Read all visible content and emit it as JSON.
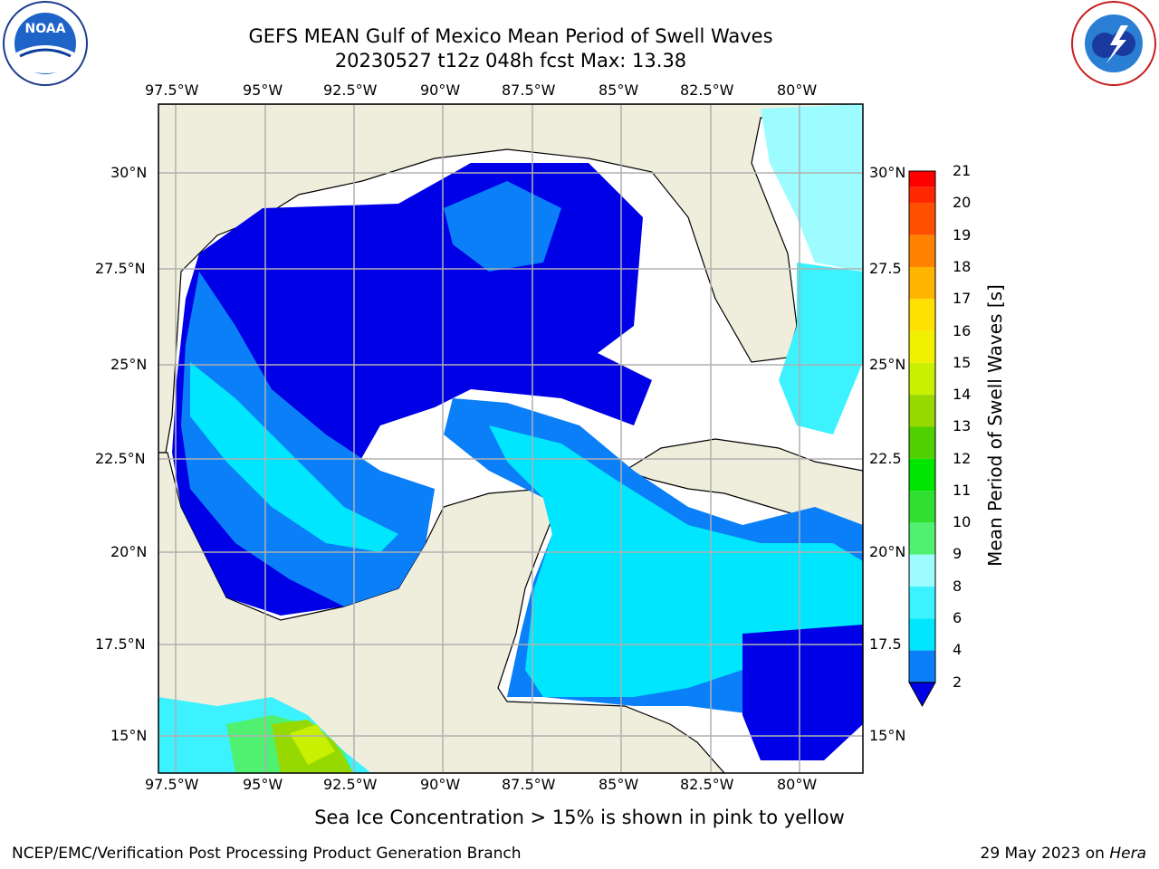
{
  "header": {
    "title_line1": "GEFS MEAN Gulf of Mexico Mean Period of Swell Waves",
    "title_line2": "20230527 t12z 048h fcst   Max: 13.38"
  },
  "logos": {
    "left": "NOAA",
    "left_ring_text": "NATIONAL OCEANIC AND ATMOSPHERIC ADMINISTRATION · U.S. DEPARTMENT OF COMMERCE",
    "right_ring_text": "NATIONAL WEATHER SERVICE"
  },
  "map": {
    "lon_labels": [
      "97.5°W",
      "95°W",
      "92.5°W",
      "90°W",
      "87.5°W",
      "85°W",
      "82.5°W",
      "80°W"
    ],
    "lat_labels_left": [
      "30°N",
      "27.5°N",
      "25°N",
      "22.5°N",
      "20°N",
      "17.5°N",
      "15°N"
    ],
    "lat_labels_right": [
      "30°N",
      "27.5",
      "25°N",
      "22.5",
      "20°N",
      "17.5",
      "15°N"
    ],
    "colors": {
      "land": "#efeedc",
      "ocean_none": "#ffffff",
      "grid": "#b0b0b0"
    }
  },
  "colorbar": {
    "label": "Mean Period of Swell Waves [s]",
    "ticks": [
      "2",
      "4",
      "6",
      "8",
      "9",
      "10",
      "11",
      "12",
      "13",
      "14",
      "15",
      "16",
      "17",
      "18",
      "19",
      "20",
      "21"
    ],
    "colors": [
      "#0000e6",
      "#0a7ff8",
      "#00e6ff",
      "#3cf2ff",
      "#9cfcff",
      "#50f070",
      "#30e030",
      "#00e600",
      "#50d000",
      "#96d800",
      "#c8f000",
      "#f0f000",
      "#ffe000",
      "#ffb400",
      "#ff8200",
      "#ff5000",
      "#ff2800",
      "#ff0000"
    ]
  },
  "footer": {
    "note": "Sea Ice Concentration > 15% is shown in pink to yellow",
    "credit": "NCEP/EMC/Verification Post Processing Product Generation Branch",
    "date": "29 May 2023 on",
    "machine": "Hera"
  }
}
